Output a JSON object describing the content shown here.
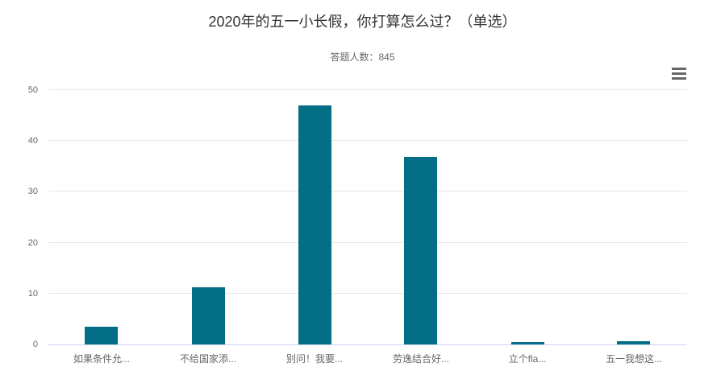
{
  "header": {
    "title": "2020年的五一小长假，你打算怎么过？（单选）",
    "subtitle": "答题人数：845"
  },
  "toolbar": {
    "context_menu_icon": "hamburger-menu-icon"
  },
  "colors": {
    "bar": "#046e87",
    "grid_line": "#e6e6e6",
    "axis_line": "#ccd6eb",
    "title_text": "#333333",
    "muted_text": "#666666",
    "menu_icon": "#666666"
  },
  "chart_data": {
    "type": "bar",
    "title": "2020年的五一小长假，你打算怎么过？（单选）",
    "subtitle": "答题人数：845",
    "categories": [
      "如果条件允...",
      "不给国家添...",
      "别问！我要...",
      "劳逸结合好...",
      "立个fla...",
      "五一我想这..."
    ],
    "values": [
      3.5,
      11.2,
      47,
      36.9,
      0.4,
      0.6
    ],
    "xlabel": "",
    "ylabel": "",
    "ylim": [
      0,
      50
    ],
    "ytick_interval": 10,
    "yticks": [
      0,
      10,
      20,
      30,
      40,
      50
    ],
    "grid": true,
    "legend": "none",
    "respondent_count": 845
  }
}
